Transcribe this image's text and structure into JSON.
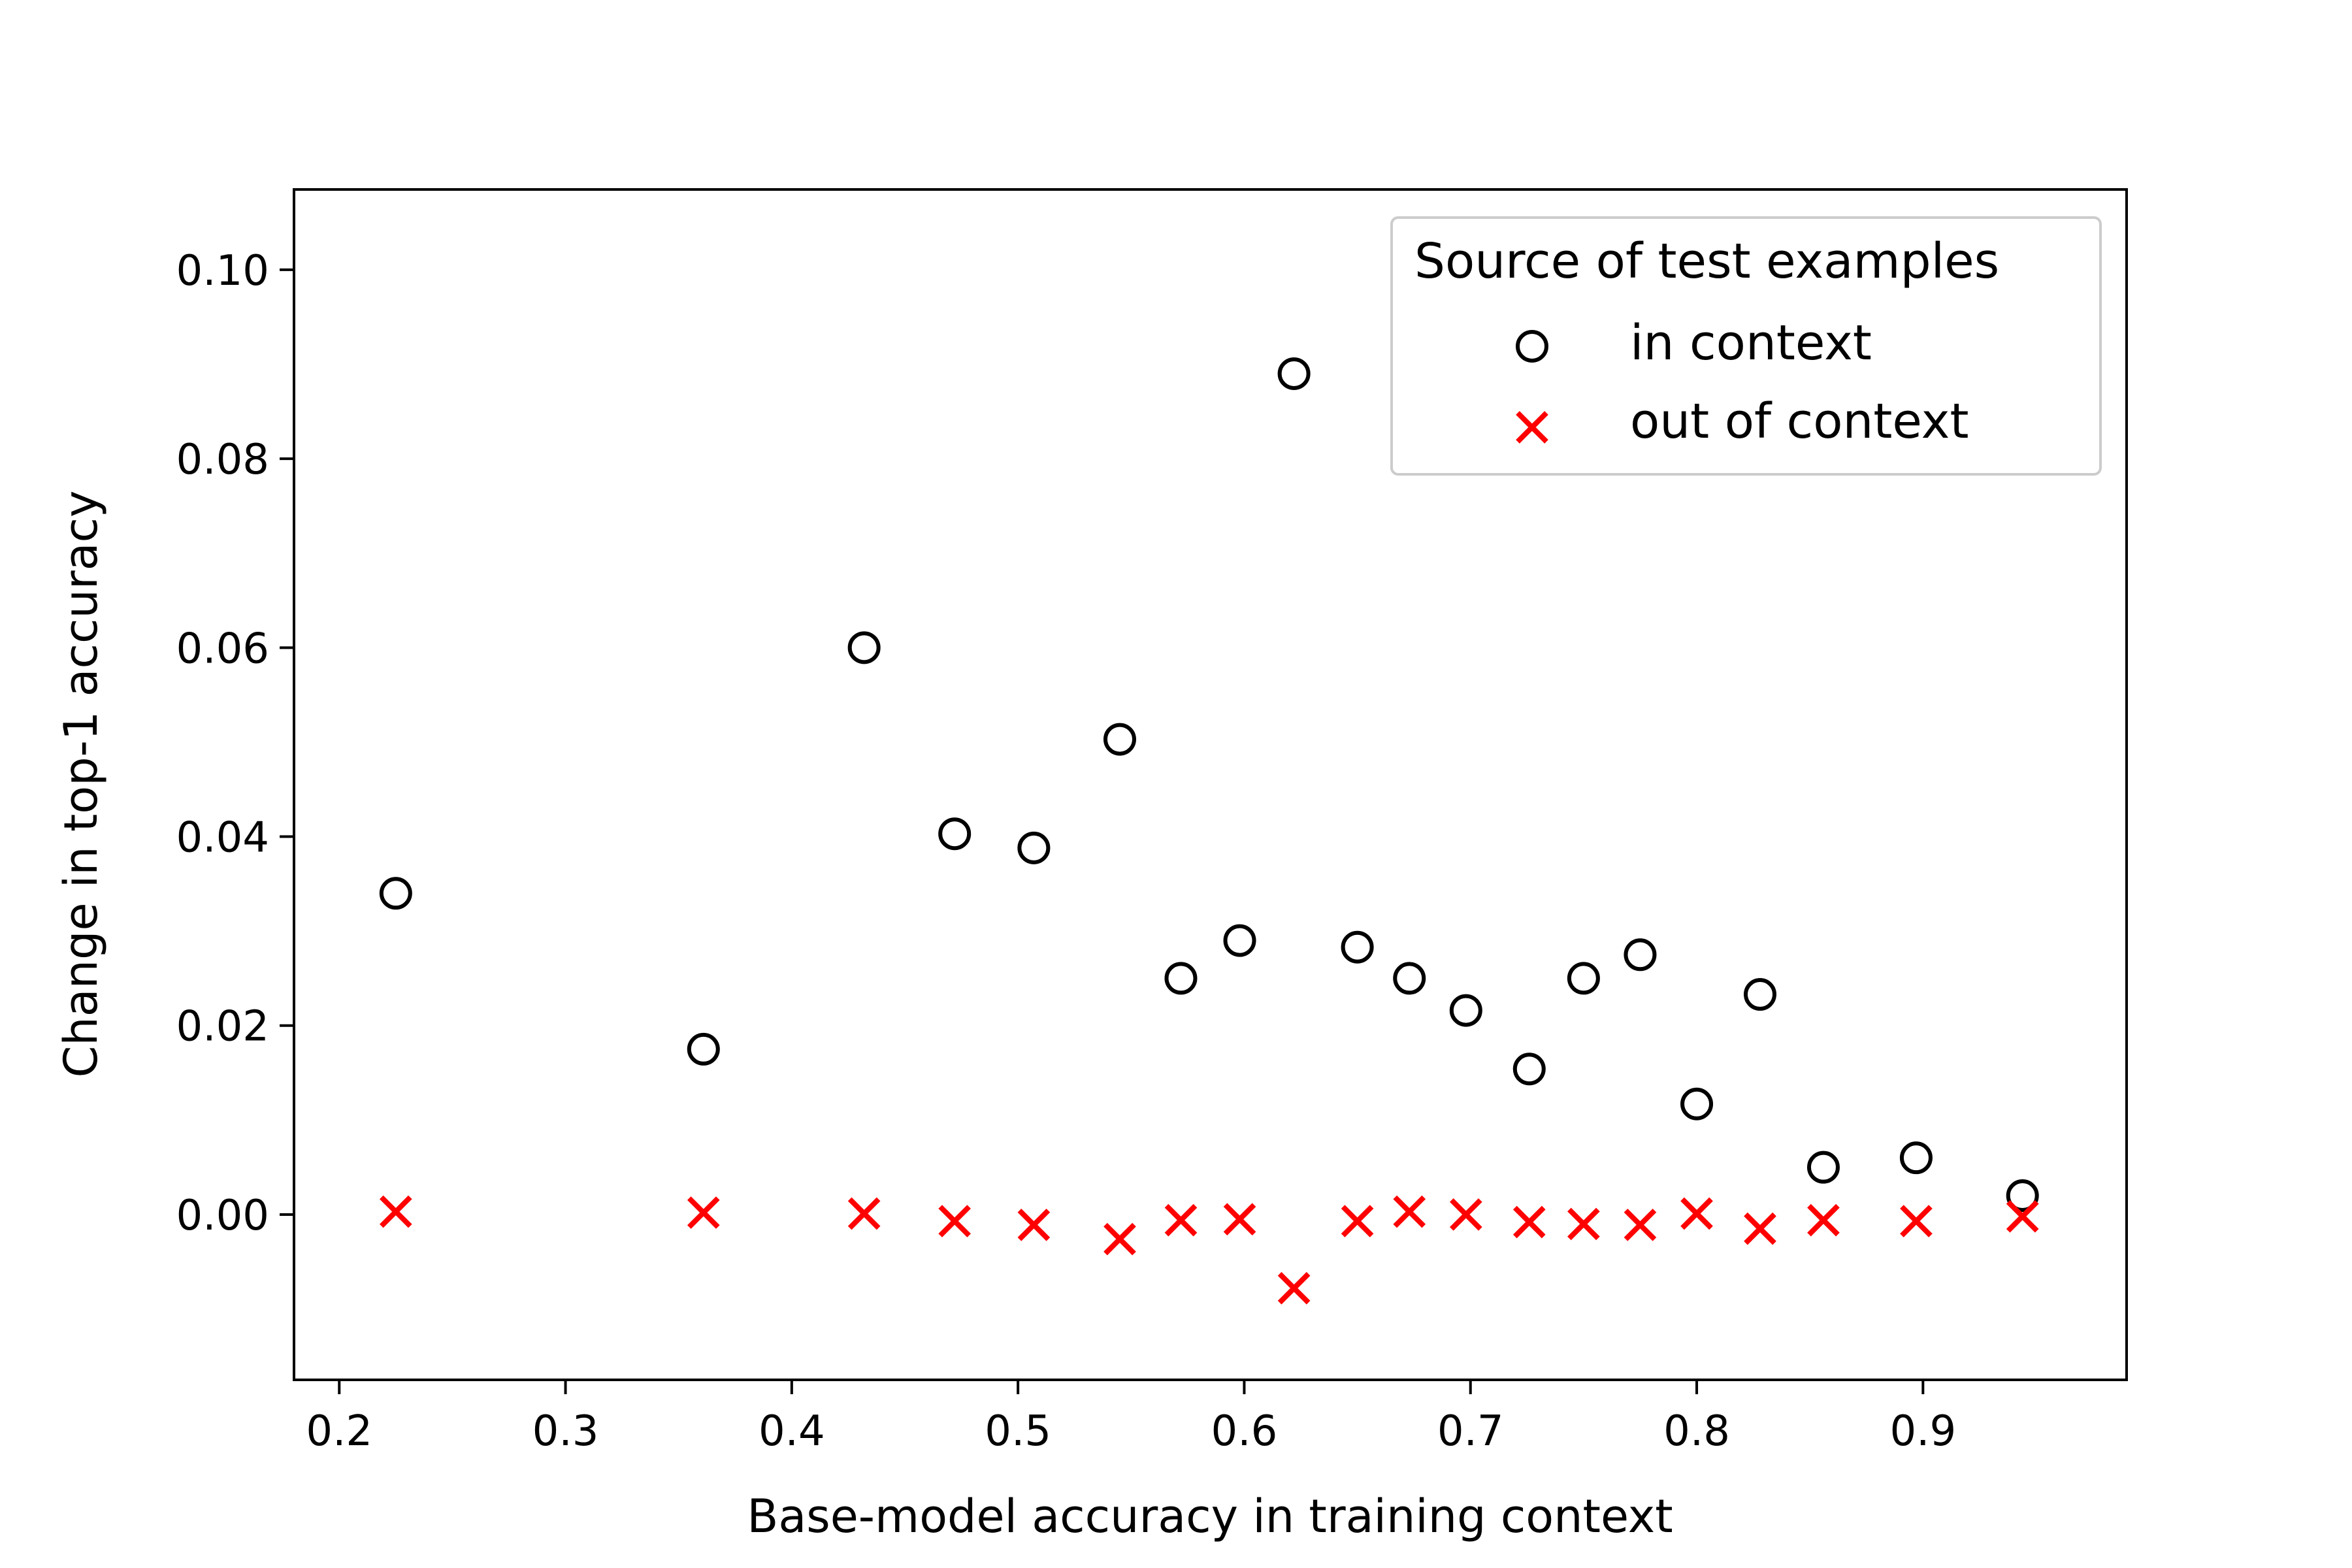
{
  "chart_data": {
    "type": "scatter",
    "title": "",
    "xlabel": "Base-model accuracy in training context",
    "ylabel": "Change in top-1 accuracy",
    "xlim": [
      0.18,
      0.99
    ],
    "ylim": [
      -0.0175,
      0.1085
    ],
    "xticks": [
      "0.2",
      "0.3",
      "0.4",
      "0.5",
      "0.6",
      "0.7",
      "0.8",
      "0.9"
    ],
    "yticks": [
      "0.00",
      "0.02",
      "0.04",
      "0.06",
      "0.08",
      "0.10"
    ],
    "grid": false,
    "legend": {
      "title": "Source of test examples",
      "position": "top-right",
      "entries": [
        "in context",
        "out of context"
      ]
    },
    "series": [
      {
        "name": "in context",
        "marker": "open-circle",
        "color": "#000000",
        "x": [
          0.225,
          0.361,
          0.432,
          0.472,
          0.507,
          0.545,
          0.572,
          0.598,
          0.622,
          0.65,
          0.673,
          0.698,
          0.726,
          0.75,
          0.775,
          0.8,
          0.828,
          0.856,
          0.897,
          0.944
        ],
        "y": [
          0.034,
          0.0175,
          0.06,
          0.0403,
          0.0388,
          0.0503,
          0.025,
          0.029,
          0.089,
          0.0283,
          0.025,
          0.0216,
          0.0154,
          0.025,
          0.0275,
          0.0117,
          0.0233,
          0.005,
          0.006,
          0.002
        ]
      },
      {
        "name": "out of context",
        "marker": "x",
        "color": "#ff0000",
        "x": [
          0.225,
          0.361,
          0.432,
          0.472,
          0.507,
          0.545,
          0.572,
          0.598,
          0.622,
          0.65,
          0.673,
          0.698,
          0.726,
          0.75,
          0.775,
          0.8,
          0.828,
          0.856,
          0.897,
          0.944
        ],
        "y": [
          0.0003,
          0.0002,
          0.0001,
          -0.0007,
          -0.0011,
          -0.0026,
          -0.0006,
          -0.0005,
          -0.0078,
          -0.0007,
          0.0003,
          0.0,
          -0.0008,
          -0.001,
          -0.0011,
          0.0001,
          -0.0015,
          -0.0006,
          -0.0007,
          -0.0002
        ]
      }
    ]
  }
}
